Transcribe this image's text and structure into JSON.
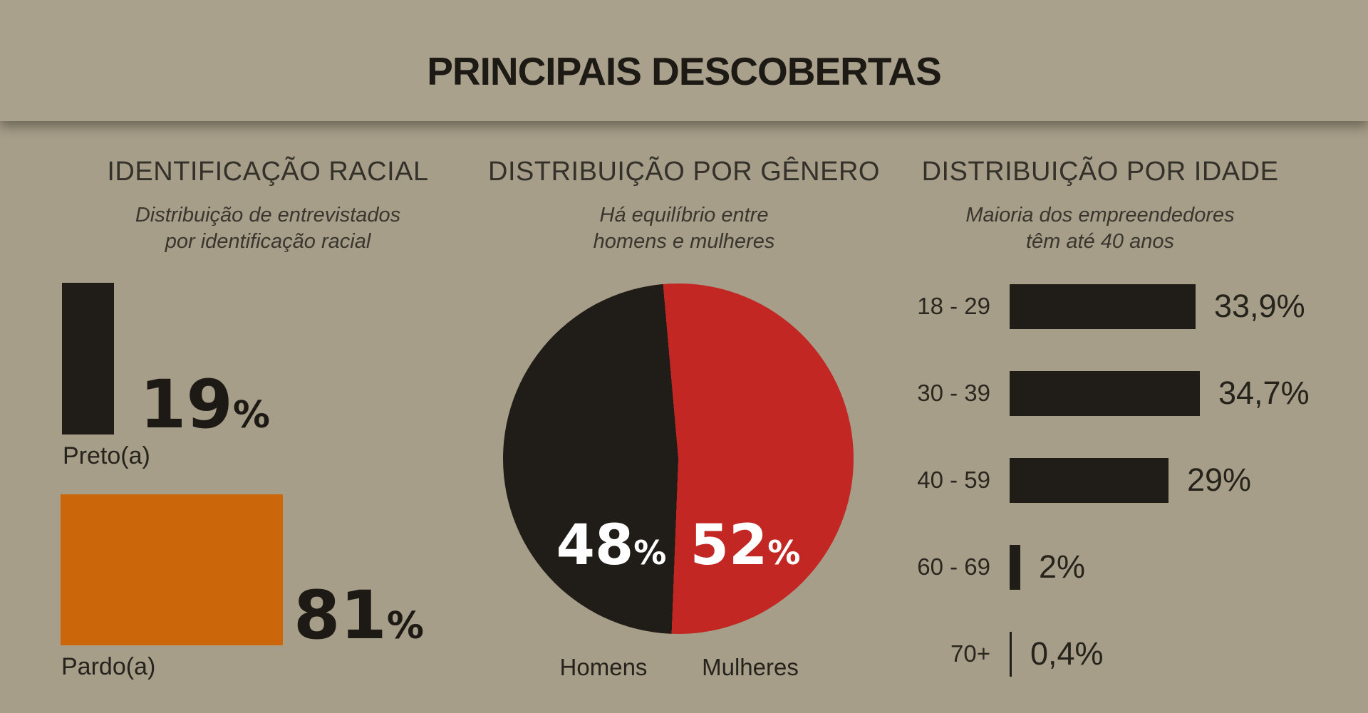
{
  "header": {
    "title": "PRINCIPAIS DESCOBERTAS"
  },
  "colors": {
    "background": "#a69e89",
    "header_band": "#a9a18c",
    "ink": "#201c17",
    "orange": "#cc660b",
    "red": "#c22723",
    "white": "#ffffff"
  },
  "sections": {
    "racial": {
      "heading": "IDENTIFICAÇÃO RACIAL",
      "subtitle_lines": [
        "Distribuição de entrevistados",
        "por identificação racial"
      ],
      "items": [
        {
          "number": "19",
          "unit": "%",
          "label": "Preto(a)"
        },
        {
          "number": "81",
          "unit": "%",
          "label": "Pardo(a)"
        }
      ]
    },
    "gender": {
      "heading": "DISTRIBUIÇÃO POR GÊNERO",
      "subtitle_lines": [
        "Há equilíbrio entre",
        "homens e mulheres"
      ],
      "slices": [
        {
          "number": "48",
          "unit": "%",
          "label": "Homens"
        },
        {
          "number": "52",
          "unit": "%",
          "label": "Mulheres"
        }
      ]
    },
    "age": {
      "heading": "DISTRIBUIÇÃO POR IDADE",
      "subtitle_lines": [
        "Maioria dos empreendedores",
        "têm até 40 anos"
      ],
      "rows": [
        {
          "label": "18 - 29",
          "value": "33,9%"
        },
        {
          "label": "30 - 39",
          "value": "34,7%"
        },
        {
          "label": "40 - 59",
          "value": "29%"
        },
        {
          "label": "60 - 69",
          "value": "2%"
        },
        {
          "label": "70+",
          "value": "0,4%"
        }
      ]
    }
  },
  "chart_data": [
    {
      "type": "bar",
      "title": "IDENTIFICAÇÃO RACIAL",
      "subtitle": "Distribuição de entrevistados por identificação racial",
      "categories": [
        "Preto(a)",
        "Pardo(a)"
      ],
      "values": [
        19,
        81
      ],
      "unit": "%",
      "bar_colors": [
        "#201c17",
        "#cc660b"
      ],
      "encoding": "equal-height blocks, width proportional to value, value label beside block"
    },
    {
      "type": "pie",
      "title": "DISTRIBUIÇÃO POR GÊNERO",
      "subtitle": "Há equilíbrio entre homens e mulheres",
      "categories": [
        "Homens",
        "Mulheres"
      ],
      "values": [
        48,
        52
      ],
      "unit": "%",
      "colors": [
        "#201c17",
        "#c22723"
      ],
      "labels_inside": [
        "48%",
        "52%"
      ],
      "legend_position": "below"
    },
    {
      "type": "bar",
      "orientation": "horizontal",
      "title": "DISTRIBUIÇÃO POR IDADE",
      "subtitle": "Maioria dos empreendedores têm até 40 anos",
      "categories": [
        "18 - 29",
        "30 - 39",
        "40 - 59",
        "60 - 69",
        "70+"
      ],
      "values": [
        33.9,
        34.7,
        29,
        2,
        0.4
      ],
      "value_labels": [
        "33,9%",
        "34,7%",
        "29%",
        "2%",
        "0,4%"
      ],
      "unit": "%",
      "bar_color": "#201c17",
      "grid": false
    }
  ]
}
